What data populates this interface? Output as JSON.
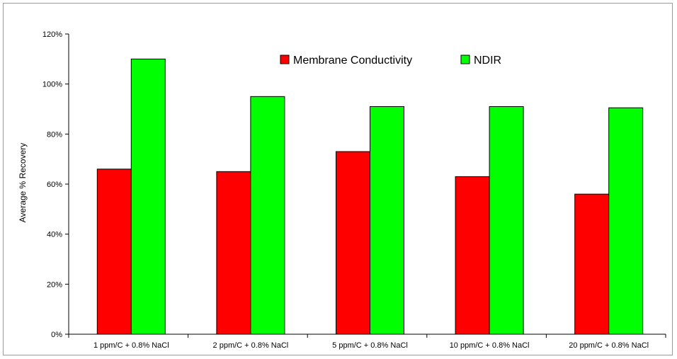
{
  "chart_data": {
    "type": "bar",
    "categories": [
      "1 ppm/C + 0.8% NaCl",
      "2 ppm/C + 0.8% NaCl",
      "5 ppm/C  + 0.8% NaCl",
      "10 ppm/C + 0.8% NaCl",
      "20 ppm/C + 0.8% NaCl"
    ],
    "series": [
      {
        "name": "Membrane Conductivity",
        "color": "#ff0000",
        "values": [
          66,
          65,
          73,
          63,
          56
        ]
      },
      {
        "name": "NDIR",
        "color": "#00ff00",
        "values": [
          110,
          95,
          91,
          91,
          90.5
        ]
      }
    ],
    "title": "",
    "xlabel": "",
    "ylabel": "Average % Recovery",
    "ylim": [
      0,
      120
    ],
    "yticks": [
      "0%",
      "20%",
      "40%",
      "60%",
      "80%",
      "100%",
      "120%"
    ],
    "grid": false,
    "legend": "top-center"
  }
}
